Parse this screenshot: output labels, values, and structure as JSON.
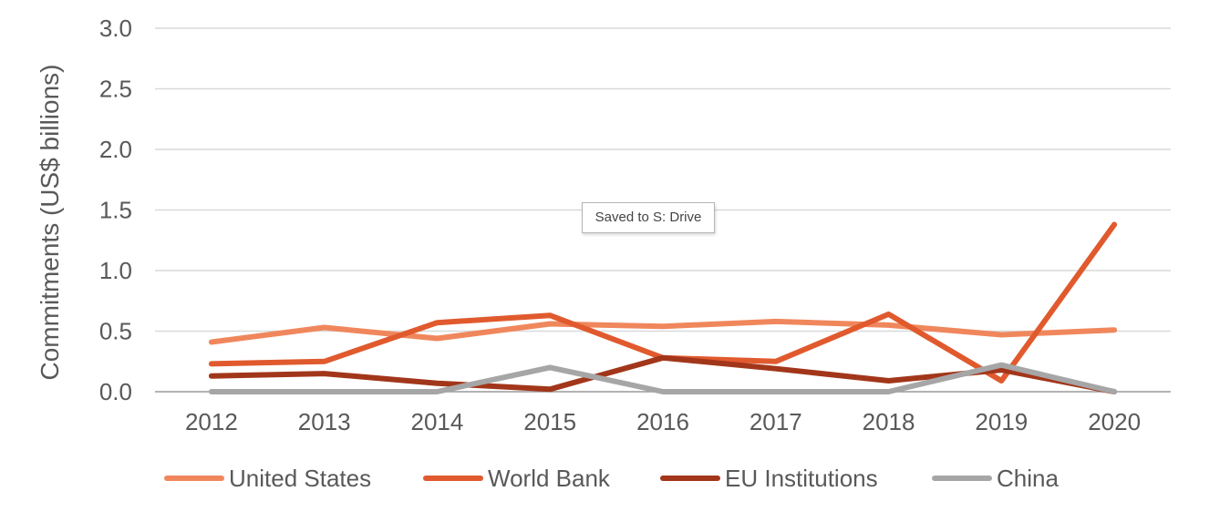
{
  "chart_data": {
    "type": "line",
    "title": "",
    "xlabel": "",
    "ylabel": "Commitments (US$ billions)",
    "x": [
      "2012",
      "2013",
      "2014",
      "2015",
      "2016",
      "2017",
      "2018",
      "2019",
      "2020"
    ],
    "ylim": [
      0,
      3.0
    ],
    "yticks": [
      "0.0",
      "0.5",
      "1.0",
      "1.5",
      "2.0",
      "2.5",
      "3.0"
    ],
    "grid": true,
    "legend_position": "bottom",
    "series": [
      {
        "name": "United States",
        "color": "#F0875C",
        "values": [
          0.41,
          0.53,
          0.44,
          0.56,
          0.54,
          0.58,
          0.55,
          0.47,
          0.51
        ]
      },
      {
        "name": "World Bank",
        "color": "#E05A2E",
        "values": [
          0.23,
          0.25,
          0.57,
          0.63,
          0.28,
          0.25,
          0.64,
          0.09,
          1.38
        ]
      },
      {
        "name": "EU Institutions",
        "color": "#A2361A",
        "values": [
          0.13,
          0.15,
          0.07,
          0.02,
          0.28,
          0.19,
          0.09,
          0.18,
          0.0
        ]
      },
      {
        "name": "China",
        "color": "#A6A6A6",
        "values": [
          0.0,
          0.0,
          0.0,
          0.2,
          0.0,
          0.0,
          0.0,
          0.22,
          0.0
        ]
      }
    ]
  },
  "tooltip": {
    "text": "Saved to S: Drive"
  }
}
